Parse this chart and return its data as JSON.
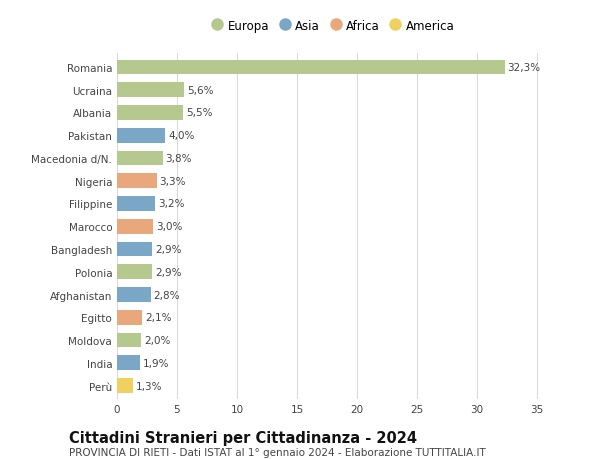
{
  "countries": [
    "Romania",
    "Ucraina",
    "Albania",
    "Pakistan",
    "Macedonia d/N.",
    "Nigeria",
    "Filippine",
    "Marocco",
    "Bangladesh",
    "Polonia",
    "Afghanistan",
    "Egitto",
    "Moldova",
    "India",
    "Perù"
  ],
  "values": [
    32.3,
    5.6,
    5.5,
    4.0,
    3.8,
    3.3,
    3.2,
    3.0,
    2.9,
    2.9,
    2.8,
    2.1,
    2.0,
    1.9,
    1.3
  ],
  "labels": [
    "32,3%",
    "5,6%",
    "5,5%",
    "4,0%",
    "3,8%",
    "3,3%",
    "3,2%",
    "3,0%",
    "2,9%",
    "2,9%",
    "2,8%",
    "2,1%",
    "2,0%",
    "1,9%",
    "1,3%"
  ],
  "continents": [
    "Europa",
    "Europa",
    "Europa",
    "Asia",
    "Europa",
    "Africa",
    "Asia",
    "Africa",
    "Asia",
    "Europa",
    "Asia",
    "Africa",
    "Europa",
    "Asia",
    "America"
  ],
  "continent_colors": {
    "Europa": "#b5c98e",
    "Asia": "#7ba7c7",
    "Africa": "#e8a87c",
    "America": "#f0d060"
  },
  "legend_order": [
    "Europa",
    "Asia",
    "Africa",
    "America"
  ],
  "title": "Cittadini Stranieri per Cittadinanza - 2024",
  "subtitle": "PROVINCIA DI RIETI - Dati ISTAT al 1° gennaio 2024 - Elaborazione TUTTITALIA.IT",
  "xlim": [
    0,
    36
  ],
  "xticks": [
    0,
    5,
    10,
    15,
    20,
    25,
    30,
    35
  ],
  "bg_color": "#ffffff",
  "grid_color": "#d8d8d8",
  "bar_height": 0.65,
  "label_fontsize": 7.5,
  "title_fontsize": 10.5,
  "subtitle_fontsize": 7.5,
  "legend_fontsize": 8.5,
  "tick_fontsize": 7.5
}
